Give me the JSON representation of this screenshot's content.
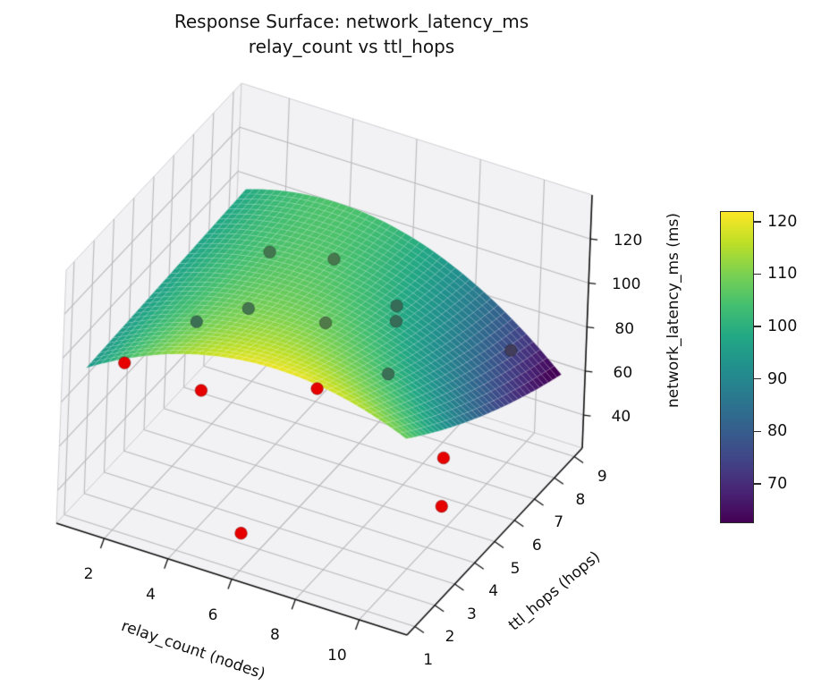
{
  "title": {
    "line1": "Response Surface: network_latency_ms",
    "line2": "relay_count vs ttl_hops"
  },
  "chart_data": {
    "type": "surface3d",
    "title": "Response Surface: network_latency_ms — relay_count vs ttl_hops",
    "x_axis": {
      "label": "relay_count (nodes)",
      "ticks": [
        2,
        4,
        6,
        8,
        10
      ],
      "range": [
        0.5,
        11.5
      ]
    },
    "y_axis": {
      "label": "ttl_hops (hops)",
      "ticks": [
        1,
        2,
        3,
        4,
        5,
        6,
        7,
        8,
        9
      ],
      "range": [
        0.6,
        9.4
      ]
    },
    "z_axis": {
      "label": "network_latency_ms (ms)",
      "ticks": [
        40,
        60,
        80,
        100,
        120
      ],
      "range": [
        25,
        140
      ]
    },
    "colorbar": {
      "colormap": "viridis",
      "ticks": [
        70,
        80,
        90,
        100,
        110,
        120
      ],
      "cmin": 62.5,
      "cmax": 122
    },
    "surface_fit": {
      "r_knots": [
        1,
        6,
        11
      ],
      "t_knots": [
        1,
        5,
        9
      ],
      "z_grid": [
        [
          94,
          120,
          108
        ],
        [
          96,
          107,
          80
        ],
        [
          98,
          101,
          60
        ]
      ],
      "r_domain": [
        1,
        11
      ],
      "t_domain": [
        1,
        9
      ]
    },
    "scatter_points": [
      {
        "relay_count": 1,
        "ttl_hops": 3,
        "latency_ms": 77,
        "occluded": false
      },
      {
        "relay_count": 4,
        "ttl_hops": 2,
        "latency_ms": 88,
        "occluded": false
      },
      {
        "relay_count": 7,
        "ttl_hops": 3,
        "latency_ms": 93,
        "occluded": false
      },
      {
        "relay_count": 6,
        "ttl_hops": 1,
        "latency_ms": 42,
        "occluded": false
      },
      {
        "relay_count": 11,
        "ttl_hops": 3,
        "latency_ms": 80,
        "occluded": false
      },
      {
        "relay_count": 11,
        "ttl_hops": 3,
        "latency_ms": 58,
        "occluded": false
      },
      {
        "relay_count": 3,
        "ttl_hops": 7,
        "latency_ms": 98,
        "occluded": true
      },
      {
        "relay_count": 5,
        "ttl_hops": 7,
        "latency_ms": 104,
        "occluded": true
      },
      {
        "relay_count": 3,
        "ttl_hops": 6,
        "latency_ms": 82,
        "occluded": true
      },
      {
        "relay_count": 2,
        "ttl_hops": 5,
        "latency_ms": 81,
        "occluded": true
      },
      {
        "relay_count": 6,
        "ttl_hops": 5,
        "latency_ms": 99,
        "occluded": true
      },
      {
        "relay_count": 7,
        "ttl_hops": 7,
        "latency_ms": 92,
        "occluded": true
      },
      {
        "relay_count": 7,
        "ttl_hops": 7,
        "latency_ms": 85,
        "occluded": true
      },
      {
        "relay_count": 8,
        "ttl_hops": 5,
        "latency_ms": 85,
        "occluded": true
      },
      {
        "relay_count": 10,
        "ttl_hops": 8,
        "latency_ms": 76,
        "occluded": true
      }
    ],
    "point_color": "#e60000",
    "pane_color": "#f2f2f4",
    "grid_color": "#b9b9bd",
    "legend_position": "none",
    "grid": true
  }
}
